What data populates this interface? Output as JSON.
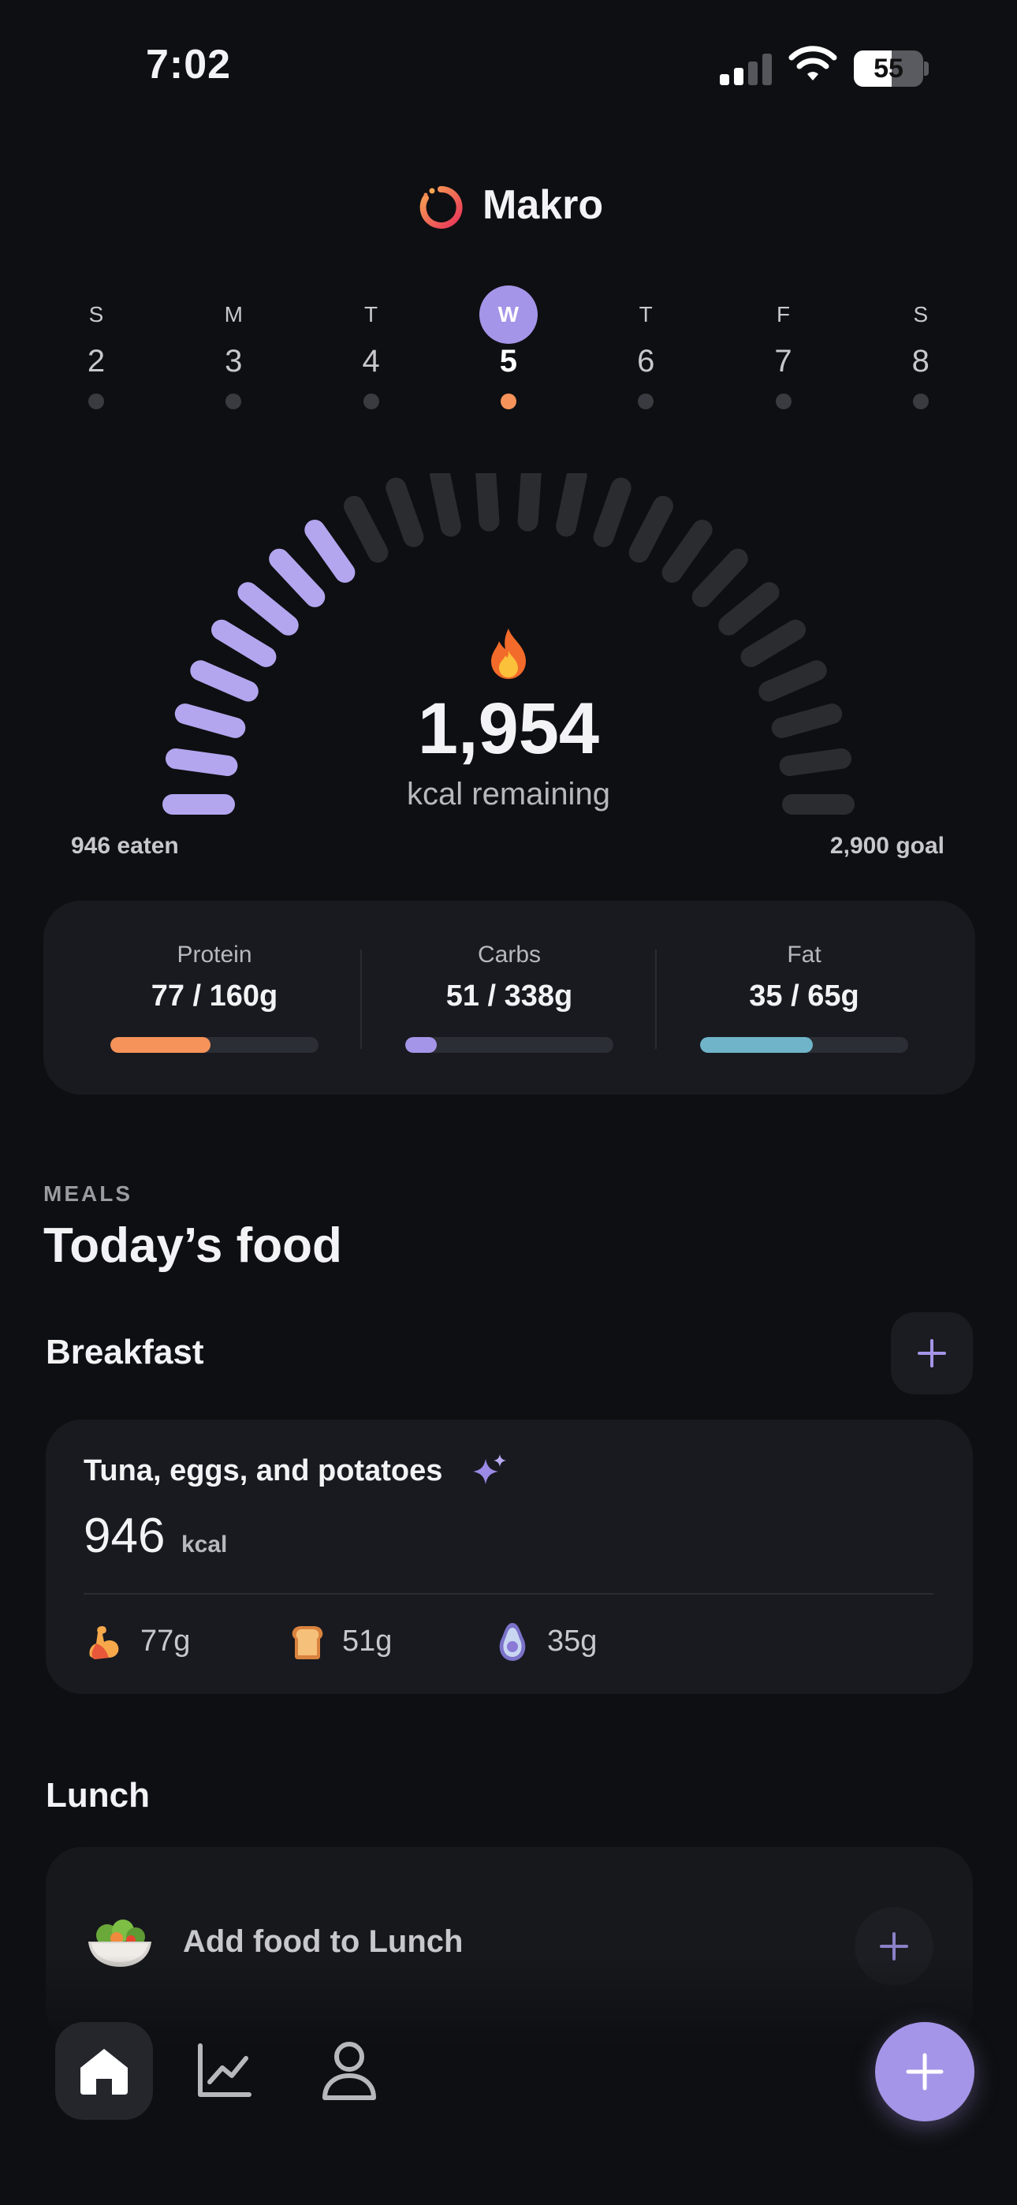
{
  "status_bar": {
    "time": "7:02",
    "battery": "55"
  },
  "header": {
    "app_name": "Makro"
  },
  "week": [
    {
      "letter": "S",
      "number": "2",
      "selected": false
    },
    {
      "letter": "M",
      "number": "3",
      "selected": false
    },
    {
      "letter": "T",
      "number": "4",
      "selected": false
    },
    {
      "letter": "W",
      "number": "5",
      "selected": true
    },
    {
      "letter": "T",
      "number": "6",
      "selected": false
    },
    {
      "letter": "F",
      "number": "7",
      "selected": false
    },
    {
      "letter": "S",
      "number": "8",
      "selected": false
    }
  ],
  "calories": {
    "remaining": "1,954",
    "remaining_label": "kcal remaining",
    "eaten": "946 eaten",
    "goal": "2,900 goal",
    "gauge_segments": 24,
    "gauge_filled": 8,
    "gauge_fill_color": "#b3a6ef",
    "gauge_empty_color": "#2a2c30"
  },
  "macros": [
    {
      "label": "Protein",
      "value": "77 / 160g",
      "fraction": 0.48,
      "color": "#f6935a"
    },
    {
      "label": "Carbs",
      "value": "51 / 338g",
      "fraction": 0.15,
      "color": "#a595e8"
    },
    {
      "label": "Fat",
      "value": "35 / 65g",
      "fraction": 0.54,
      "color": "#6fb4c9"
    }
  ],
  "meals": {
    "section_label": "MEALS",
    "title": "Today’s food",
    "breakfast": {
      "title": "Breakfast",
      "item_name": "Tuna, eggs, and potatoes",
      "kcal": "946",
      "kcal_unit": "kcal",
      "protein": "77g",
      "carbs": "51g",
      "fat": "35g"
    },
    "lunch": {
      "title": "Lunch",
      "add_label": "Add food to Lunch"
    }
  },
  "icons": {
    "logo": "makro-ring-logo",
    "flame": "flame-icon",
    "sparkle": "sparkle-icon",
    "protein": "muscle-icon",
    "carbs": "bread-icon",
    "fat": "avocado-icon"
  },
  "colors": {
    "accent": "#a595e8",
    "background": "#0e0f12",
    "card": "#181a1f"
  }
}
